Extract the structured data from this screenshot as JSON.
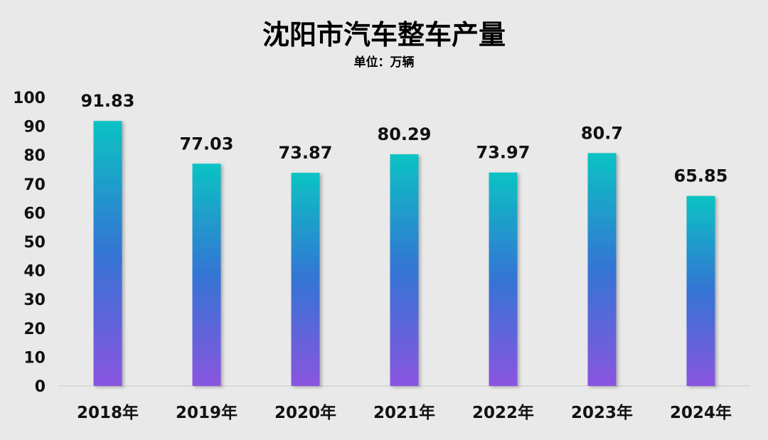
{
  "chart_data": {
    "type": "bar",
    "title": "沈阳市汽车整车产量",
    "subtitle": "单位：万辆",
    "categories": [
      "2018年",
      "2019年",
      "2020年",
      "2021年",
      "2022年",
      "2023年",
      "2024年"
    ],
    "values": [
      91.83,
      77.03,
      73.87,
      80.29,
      73.97,
      80.7,
      65.85
    ],
    "data_labels": [
      "91.83",
      "77.03",
      "73.87",
      "80.29",
      "73.97",
      "80.7",
      "65.85"
    ],
    "y_ticks": [
      "0",
      "10",
      "20",
      "30",
      "40",
      "50",
      "60",
      "70",
      "80",
      "90",
      "100"
    ],
    "ylim": [
      0,
      100
    ],
    "grid": false,
    "legend": "none",
    "colors": {
      "background": "#e9e9e9",
      "bar_top": "#0bc3c3",
      "bar_middle": "#3474d4",
      "bar_bottom": "#8a55e0",
      "axis_line": "#d4d4d4"
    }
  }
}
